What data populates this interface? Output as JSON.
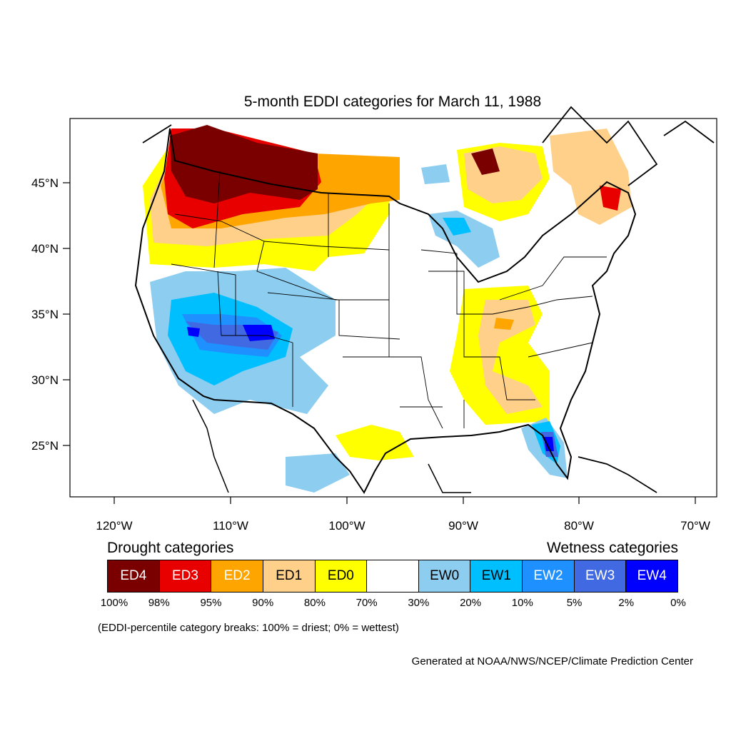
{
  "title": "5-month EDDI categories for March 11, 1988",
  "lat_labels": [
    "45°N",
    "40°N",
    "35°N",
    "30°N",
    "25°N"
  ],
  "lon_labels": [
    "120°W",
    "110°W",
    "100°W",
    "90°W",
    "80°W",
    "70°W"
  ],
  "legend": {
    "drought_title": "Drought categories",
    "wetness_title": "Wetness categories",
    "categories": [
      {
        "label": "ED4",
        "color": "#7a0000",
        "text_color": "#ffffff"
      },
      {
        "label": "ED3",
        "color": "#e80000",
        "text_color": "#ffffff"
      },
      {
        "label": "ED2",
        "color": "#ffa500",
        "text_color": "#ffffff"
      },
      {
        "label": "ED1",
        "color": "#ffd08a",
        "text_color": "#000000"
      },
      {
        "label": "ED0",
        "color": "#ffff00",
        "text_color": "#000000"
      },
      {
        "label": "",
        "color": "#ffffff",
        "text_color": "#000000"
      },
      {
        "label": "EW0",
        "color": "#8ccdf0",
        "text_color": "#000000"
      },
      {
        "label": "EW1",
        "color": "#00bfff",
        "text_color": "#000000"
      },
      {
        "label": "EW2",
        "color": "#1e90ff",
        "text_color": "#ffffff"
      },
      {
        "label": "EW3",
        "color": "#4169e1",
        "text_color": "#ffffff"
      },
      {
        "label": "EW4",
        "color": "#0000ff",
        "text_color": "#ffffff"
      }
    ],
    "breaks": [
      "100%",
      "98%",
      "95%",
      "90%",
      "80%",
      "70%",
      "30%",
      "20%",
      "10%",
      "5%",
      "2%",
      "0%"
    ]
  },
  "note": "(EDDI-percentile category breaks: 100% = driest; 0% = wettest)",
  "credit": "Generated at NOAA/NWS/NCEP/Climate Prediction Center"
}
